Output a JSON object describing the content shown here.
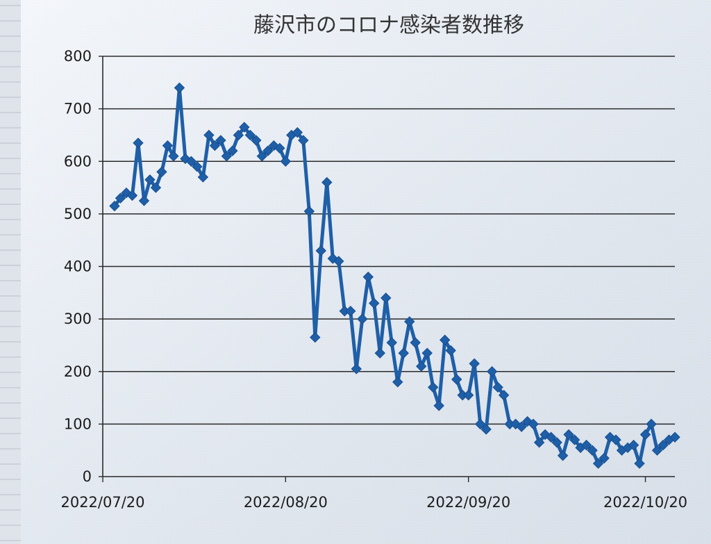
{
  "chart_data": {
    "type": "line",
    "title": "藤沢市のコロナ感染者数推移",
    "xlabel": "",
    "ylabel": "",
    "ylim": [
      0,
      800
    ],
    "yticks": [
      0,
      100,
      200,
      300,
      400,
      500,
      600,
      700,
      800
    ],
    "xlim": [
      "2022-07-20",
      "2022-10-25"
    ],
    "xticks": [
      {
        "date": "2022-07-20",
        "label": "2022/07/20"
      },
      {
        "date": "2022-08-20",
        "label": "2022/08/20"
      },
      {
        "date": "2022-09-20",
        "label": "2022/09/20"
      },
      {
        "date": "2022-10-20",
        "label": "2022/10/20"
      }
    ],
    "grid": true,
    "legend": "none",
    "series": [
      {
        "color": "#1f5fa8",
        "marker": "diamond",
        "x": [
          "2022-07-22",
          "2022-07-23",
          "2022-07-24",
          "2022-07-25",
          "2022-07-26",
          "2022-07-27",
          "2022-07-28",
          "2022-07-29",
          "2022-07-30",
          "2022-07-31",
          "2022-08-01",
          "2022-08-02",
          "2022-08-03",
          "2022-08-04",
          "2022-08-05",
          "2022-08-06",
          "2022-08-07",
          "2022-08-08",
          "2022-08-09",
          "2022-08-10",
          "2022-08-11",
          "2022-08-12",
          "2022-08-13",
          "2022-08-14",
          "2022-08-15",
          "2022-08-16",
          "2022-08-17",
          "2022-08-18",
          "2022-08-19",
          "2022-08-20",
          "2022-08-21",
          "2022-08-22",
          "2022-08-23",
          "2022-08-24",
          "2022-08-25",
          "2022-08-26",
          "2022-08-27",
          "2022-08-28",
          "2022-08-29",
          "2022-08-30",
          "2022-08-31",
          "2022-09-01",
          "2022-09-02",
          "2022-09-03",
          "2022-09-04",
          "2022-09-05",
          "2022-09-06",
          "2022-09-07",
          "2022-09-08",
          "2022-09-09",
          "2022-09-10",
          "2022-09-11",
          "2022-09-12",
          "2022-09-13",
          "2022-09-14",
          "2022-09-15",
          "2022-09-16",
          "2022-09-17",
          "2022-09-18",
          "2022-09-19",
          "2022-09-20",
          "2022-09-21",
          "2022-09-22",
          "2022-09-23",
          "2022-09-24",
          "2022-09-25",
          "2022-09-26",
          "2022-09-27",
          "2022-09-28",
          "2022-09-29",
          "2022-09-30",
          "2022-10-01",
          "2022-10-02",
          "2022-10-03",
          "2022-10-04",
          "2022-10-05",
          "2022-10-06",
          "2022-10-07",
          "2022-10-08",
          "2022-10-09",
          "2022-10-10",
          "2022-10-11",
          "2022-10-12",
          "2022-10-13",
          "2022-10-14",
          "2022-10-15",
          "2022-10-16",
          "2022-10-17",
          "2022-10-18",
          "2022-10-19",
          "2022-10-20",
          "2022-10-21",
          "2022-10-22",
          "2022-10-23",
          "2022-10-24",
          "2022-10-25"
        ],
        "values": [
          515,
          530,
          540,
          535,
          635,
          525,
          565,
          550,
          580,
          630,
          610,
          740,
          605,
          600,
          590,
          570,
          650,
          630,
          640,
          610,
          620,
          650,
          665,
          650,
          640,
          610,
          620,
          630,
          625,
          600,
          650,
          655,
          640,
          505,
          265,
          430,
          560,
          415,
          410,
          315,
          315,
          205,
          300,
          380,
          330,
          235,
          340,
          255,
          180,
          235,
          295,
          255,
          210,
          235,
          170,
          135,
          260,
          240,
          185,
          155,
          155,
          215,
          100,
          90,
          200,
          170,
          155,
          100,
          100,
          95,
          105,
          100,
          65,
          80,
          75,
          65,
          40,
          80,
          70,
          55,
          60,
          50,
          25,
          35,
          75,
          70,
          50,
          55,
          60,
          25,
          80,
          100,
          50,
          60,
          70,
          75
        ]
      }
    ]
  }
}
